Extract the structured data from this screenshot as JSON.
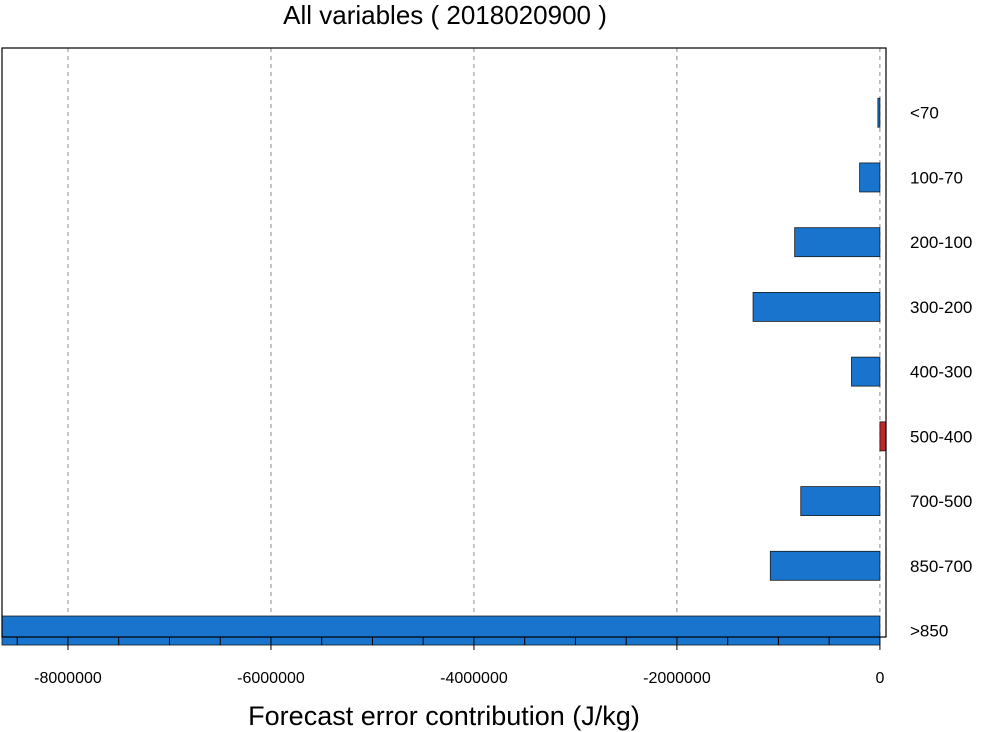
{
  "chart_data": {
    "type": "bar",
    "orientation": "horizontal",
    "title": "All variables ( 2018020900 )",
    "xlabel": "Forecast error contribution (J/kg)",
    "ylabel": "",
    "xlim": [
      -8650000,
      60000
    ],
    "xticks": [
      -8000000,
      -6000000,
      -4000000,
      -2000000,
      0
    ],
    "xtick_labels": [
      "-8000000",
      "-6000000",
      "-4000000",
      "-2000000",
      "0"
    ],
    "minor_tick_step": 500000,
    "grid": "vertical dashed at major ticks",
    "categories": [
      "<70",
      "100-70",
      "200-100",
      "300-200",
      "400-300",
      "500-400",
      "700-500",
      "850-700",
      ">850"
    ],
    "values": [
      -20000,
      -200000,
      -840000,
      -1250000,
      -280000,
      70000,
      -780000,
      -1080000,
      -8700000
    ],
    "colors": {
      "negative": "#1874cd",
      "positive": "#c0282b",
      "bar_edge": "#1a1a1a",
      "grid": "#8c8c8c",
      "axis": "#000000"
    }
  }
}
